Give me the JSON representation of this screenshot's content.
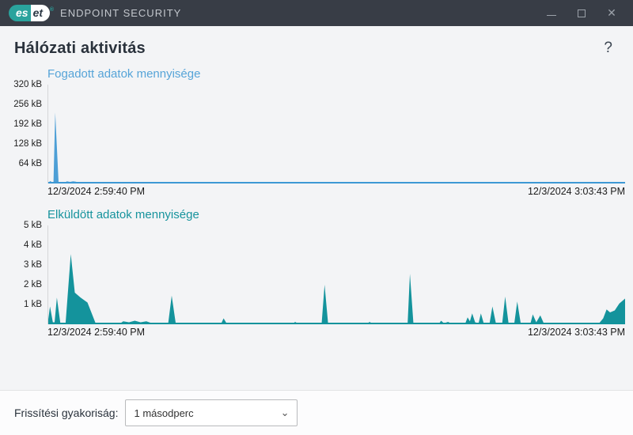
{
  "titlebar": {
    "logo_left": "es",
    "logo_right": "et",
    "logo_reg": "®",
    "brand": "ENDPOINT SECURITY",
    "controls": {
      "close": "✕"
    }
  },
  "header": {
    "title": "Hálózati aktivitás",
    "help": "?"
  },
  "chart_data": [
    {
      "type": "area",
      "title": "Fogadott adatok mennyisége",
      "title_color": "#56a4d8",
      "fill_color": "#4d9fd6",
      "baseline_color": "#3d98d4",
      "ylabel": "",
      "xlabel": "",
      "ylim": [
        0,
        320
      ],
      "yticks": [
        "320 kB",
        "256 kB",
        "192 kB",
        "128 kB",
        "64 kB"
      ],
      "x_start_label": "12/3/2024 2:59:40 PM",
      "x_end_label": "12/3/2024 3:03:43 PM",
      "points": [
        [
          0,
          3
        ],
        [
          0.4,
          8
        ],
        [
          0.7,
          2
        ],
        [
          0.9,
          4
        ],
        [
          1.2,
          230
        ],
        [
          1.8,
          0
        ],
        [
          2.8,
          1
        ],
        [
          3.2,
          7
        ],
        [
          3.8,
          5
        ],
        [
          4.3,
          7
        ],
        [
          4.8,
          6
        ],
        [
          5.3,
          2
        ],
        [
          6,
          0
        ],
        [
          13.8,
          0
        ],
        [
          14.1,
          3
        ],
        [
          14.5,
          0
        ],
        [
          18.8,
          0
        ],
        [
          19.2,
          4
        ],
        [
          19.8,
          2
        ],
        [
          20.5,
          4
        ],
        [
          21,
          2
        ],
        [
          21.6,
          4
        ],
        [
          22.2,
          0
        ],
        [
          23,
          2
        ],
        [
          23.4,
          0
        ],
        [
          47,
          0
        ],
        [
          47.4,
          3
        ],
        [
          47.8,
          0
        ],
        [
          62,
          0
        ],
        [
          62.4,
          2
        ],
        [
          62.8,
          0
        ],
        [
          78.6,
          0
        ],
        [
          79,
          3
        ],
        [
          79.4,
          0
        ],
        [
          100,
          0
        ]
      ]
    },
    {
      "type": "area",
      "title": "Elküldött adatok mennyisége",
      "title_color": "#16939d",
      "fill_color": "#14939c",
      "baseline_color": "#11939c",
      "ylabel": "",
      "xlabel": "",
      "ylim": [
        0,
        5
      ],
      "yticks": [
        "5 kB",
        "4 kB",
        "3 kB",
        "2 kB",
        "1 kB"
      ],
      "x_start_label": "12/3/2024 2:59:40 PM",
      "x_end_label": "12/3/2024 3:03:43 PM",
      "points": [
        [
          0,
          0.25
        ],
        [
          0.3,
          0.9
        ],
        [
          0.8,
          0.1
        ],
        [
          1.1,
          0.1
        ],
        [
          1.5,
          1.35
        ],
        [
          2.1,
          0.05
        ],
        [
          3,
          0.05
        ],
        [
          3.9,
          3.55
        ],
        [
          4.6,
          1.6
        ],
        [
          5.6,
          1.35
        ],
        [
          6.8,
          1.1
        ],
        [
          7.6,
          0.5
        ],
        [
          8.2,
          0.05
        ],
        [
          12.5,
          0.05
        ],
        [
          13,
          0.15
        ],
        [
          14,
          0.1
        ],
        [
          15,
          0.18
        ],
        [
          16,
          0.1
        ],
        [
          17,
          0.15
        ],
        [
          18,
          0.05
        ],
        [
          20.8,
          0.05
        ],
        [
          21.4,
          1.45
        ],
        [
          22.1,
          0.05
        ],
        [
          30,
          0.05
        ],
        [
          30.4,
          0.3
        ],
        [
          30.9,
          0.05
        ],
        [
          42.5,
          0.05
        ],
        [
          42.8,
          0.12
        ],
        [
          43.2,
          0.05
        ],
        [
          47.4,
          0.05
        ],
        [
          47.9,
          2.0
        ],
        [
          48.5,
          0.05
        ],
        [
          55.4,
          0.05
        ],
        [
          55.7,
          0.12
        ],
        [
          56.1,
          0.05
        ],
        [
          62.3,
          0.05
        ],
        [
          62.7,
          2.55
        ],
        [
          63.3,
          0.05
        ],
        [
          67.8,
          0.05
        ],
        [
          68.1,
          0.18
        ],
        [
          68.6,
          0.05
        ],
        [
          69.3,
          0.12
        ],
        [
          69.8,
          0.05
        ],
        [
          72.3,
          0.05
        ],
        [
          72.7,
          0.35
        ],
        [
          73.1,
          0.15
        ],
        [
          73.5,
          0.55
        ],
        [
          74,
          0.1
        ],
        [
          74.6,
          0.05
        ],
        [
          75,
          0.55
        ],
        [
          75.5,
          0.05
        ],
        [
          76.5,
          0.05
        ],
        [
          77,
          0.9
        ],
        [
          77.6,
          0.05
        ],
        [
          78.7,
          0.05
        ],
        [
          79.2,
          1.4
        ],
        [
          79.8,
          0.05
        ],
        [
          80.8,
          0.05
        ],
        [
          81.3,
          1.15
        ],
        [
          81.9,
          0.05
        ],
        [
          83.6,
          0.05
        ],
        [
          84,
          0.5
        ],
        [
          84.6,
          0.1
        ],
        [
          85.3,
          0.45
        ],
        [
          85.9,
          0.05
        ],
        [
          88,
          0.02
        ],
        [
          95.5,
          0.05
        ],
        [
          96.2,
          0.3
        ],
        [
          96.8,
          0.75
        ],
        [
          97.4,
          0.6
        ],
        [
          98.2,
          0.7
        ],
        [
          99,
          1.05
        ],
        [
          100,
          1.3
        ]
      ]
    }
  ],
  "footer": {
    "label": "Frissítési gyakoriság:",
    "selected_option": "1 másodperc",
    "chevron": "⌄"
  }
}
